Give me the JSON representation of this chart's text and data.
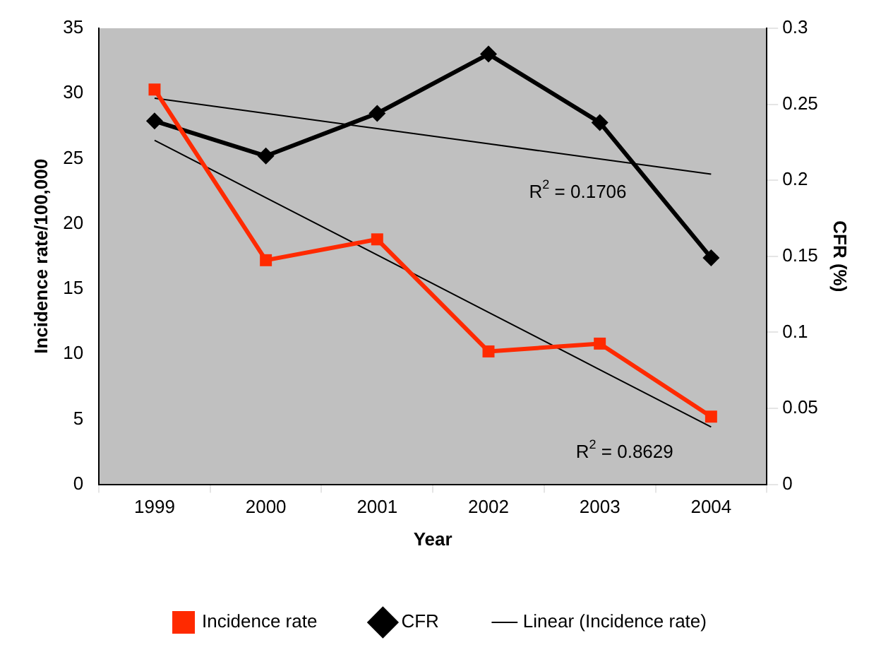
{
  "chart_data": {
    "type": "line",
    "xlabel": "Year",
    "ylabel": "Incidence rate/100,000",
    "y2label": "CFR (%)",
    "categories": [
      "1999",
      "2000",
      "2001",
      "2002",
      "2003",
      "2004"
    ],
    "series": [
      {
        "name": "Incidence rate",
        "color": "#ff2a00",
        "marker": "square",
        "values": [
          30.3,
          17.2,
          18.8,
          10.2,
          10.8,
          5.2
        ]
      },
      {
        "name": "CFR",
        "color": "#000000",
        "marker": "diamond",
        "axis": "y2",
        "values": [
          0.239,
          0.216,
          0.244,
          0.283,
          0.238,
          0.149
        ]
      },
      {
        "name": "Linear (Incidence rate)",
        "color": "#000000",
        "marker": "none",
        "values": [
          26.4,
          22.0,
          17.6,
          13.2,
          8.8,
          4.4
        ]
      },
      {
        "color": "#000000",
        "marker": "none",
        "axis": "y2",
        "values": [
          0.254,
          0.244,
          0.234,
          0.224,
          0.214,
          0.204
        ]
      }
    ],
    "ylim": [
      0,
      35
    ],
    "yticks": [
      0,
      5,
      10,
      15,
      20,
      25,
      30,
      35
    ],
    "y2lim": [
      0,
      0.3
    ],
    "y2ticks": [
      0,
      0.05,
      0.1,
      0.15,
      0.2,
      0.25,
      0.3
    ],
    "annotations": [
      "R$^{2}$ = 0.1706",
      "R$^{2}$ = 0.8629"
    ],
    "grid": false,
    "legend": "bottom"
  }
}
